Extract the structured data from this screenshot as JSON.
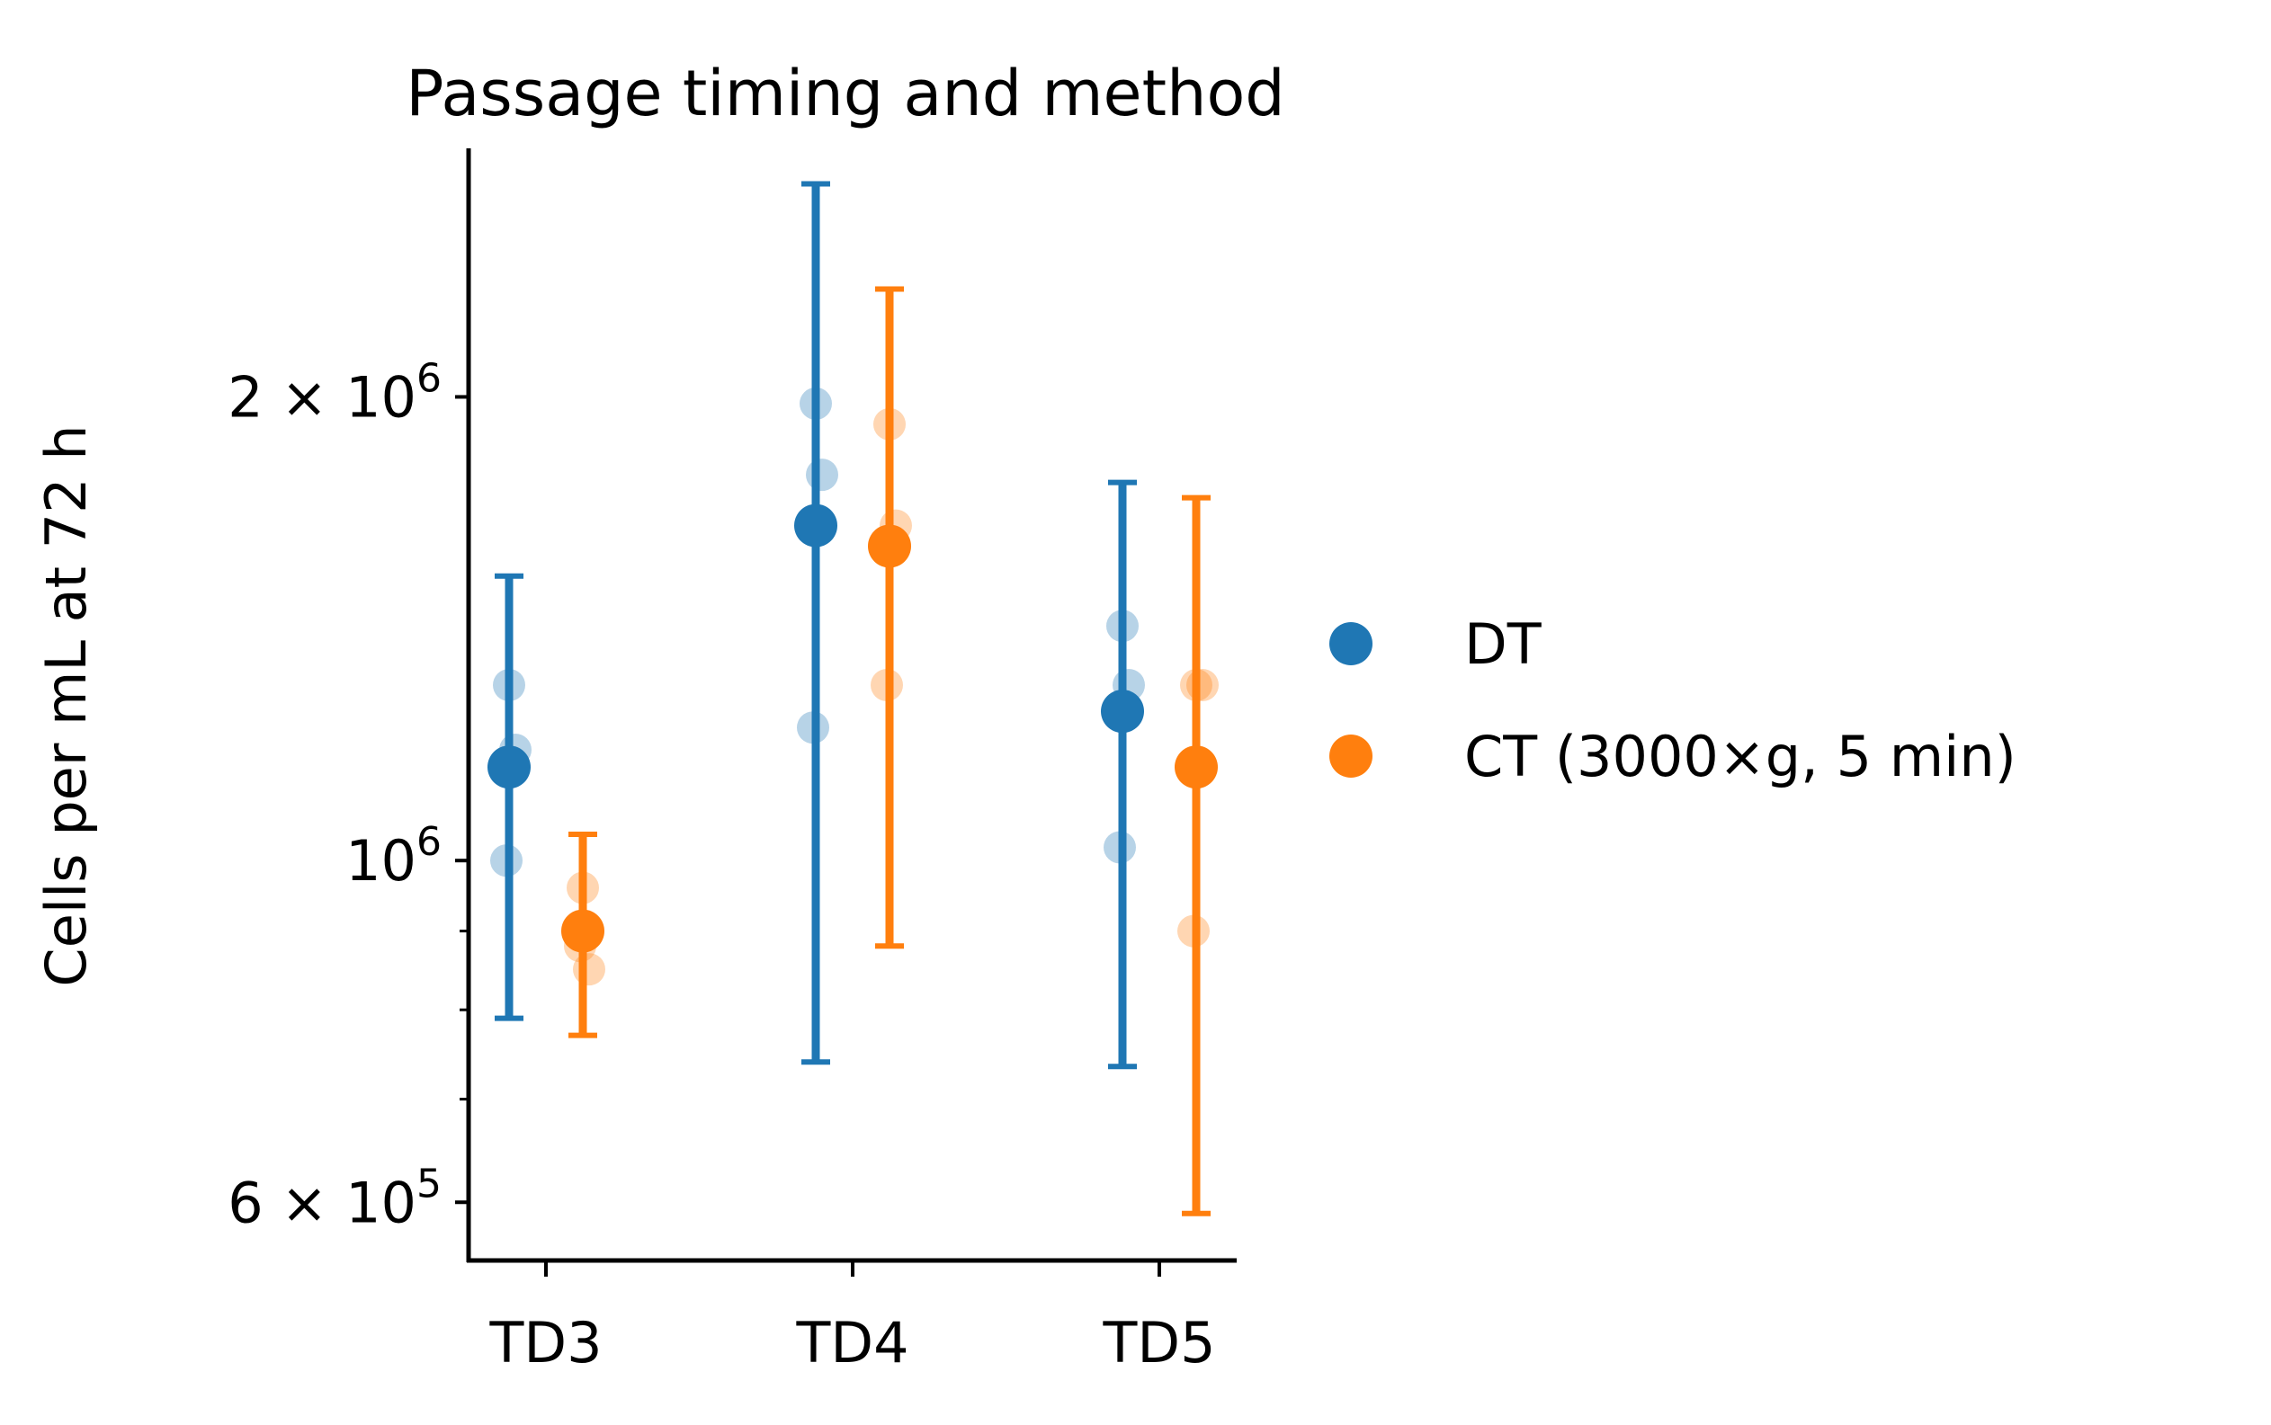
{
  "chart_data": {
    "type": "scatter",
    "title": "Passage timing and method",
    "xlabel": "",
    "ylabel": "Cells per mL at 72 h",
    "y_scale": "log",
    "ylim": [
      550000,
      2900000
    ],
    "categories": [
      "TD3",
      "TD4",
      "TD5"
    ],
    "y_ticks": [
      {
        "value": 2000000,
        "mantissa": "2",
        "base": "10",
        "exp": "6"
      },
      {
        "value": 1000000,
        "mantissa": "",
        "base": "10",
        "exp": "6"
      },
      {
        "value": 600000,
        "mantissa": "6",
        "base": "10",
        "exp": "5"
      }
    ],
    "y_minor_ticks": [
      700000,
      800000,
      900000
    ],
    "grid": false,
    "legend_position": "right",
    "series": [
      {
        "name": "DT",
        "color": "#1f77b4",
        "means": [
          1150000,
          1650000,
          1250000
        ],
        "error_low": [
          790000,
          740000,
          735000
        ],
        "error_high": [
          1530000,
          2750000,
          1760000
        ],
        "replicates": [
          [
            1300000,
            1180000,
            1000000
          ],
          [
            1980000,
            1780000,
            1220000
          ],
          [
            1420000,
            1300000,
            1020000
          ]
        ]
      },
      {
        "name": "CT (3000×g, 5 min)",
        "color": "#ff7f0e",
        "means": [
          900000,
          1600000,
          1150000
        ],
        "error_low": [
          770000,
          880000,
          590000
        ],
        "error_high": [
          1040000,
          2350000,
          1720000
        ],
        "replicates": [
          [
            960000,
            850000,
            880000
          ],
          [
            1920000,
            1650000,
            1300000
          ],
          [
            1300000,
            1300000,
            900000
          ]
        ]
      }
    ]
  }
}
